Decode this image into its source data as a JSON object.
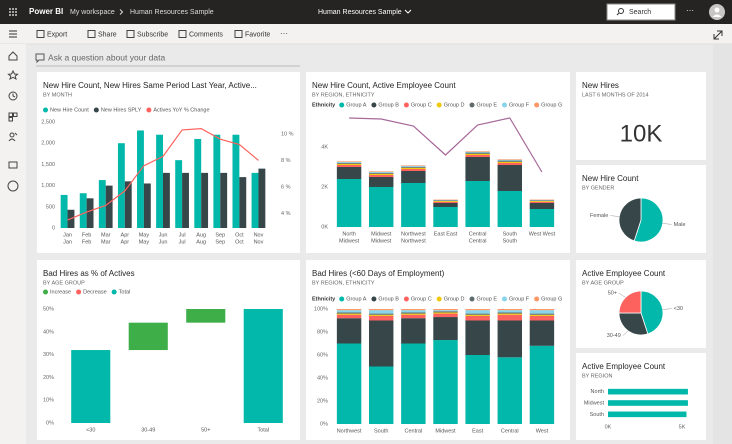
{
  "app": {
    "product": "Power BI",
    "breadcrumb": [
      "My workspace",
      "Human Resources Sample"
    ],
    "report_title": "Human Resources Sample",
    "search": "Search"
  },
  "toolbar": [
    "Export",
    "Share",
    "Subscribe",
    "Comments",
    "Favorite"
  ],
  "qa_placeholder": "Ask a question about your data",
  "chart_data": [
    {
      "type": "combo",
      "title": "New Hire Count, New Hires Same Period Last Year, Active...",
      "subtitle": "BY MONTH",
      "categories": [
        "Jan",
        "Feb",
        "Mar",
        "Apr",
        "May",
        "Jun",
        "Jul",
        "Aug",
        "Sep",
        "Oct",
        "Nov"
      ],
      "category_sublabels": [
        "Jan",
        "Feb",
        "Mar",
        "Apr",
        "May",
        "Jun",
        "Jul",
        "Aug",
        "Sep",
        "Oct",
        "Nov"
      ],
      "series": [
        {
          "name": "New Hire Count",
          "color": "#01B8AA",
          "values": [
            780,
            820,
            1130,
            2000,
            2300,
            2200,
            1600,
            2100,
            2200,
            2200,
            1300
          ]
        },
        {
          "name": "New Hires SPLY",
          "color": "#374649",
          "values": [
            430,
            700,
            1000,
            1100,
            1050,
            1300,
            1300,
            1300,
            1300,
            1200,
            1400
          ]
        },
        {
          "name": "Actives YoY % Change",
          "color": "#FD625E",
          "type": "line",
          "axis": "y2",
          "values": [
            3.5,
            4.1,
            4.6,
            5.7,
            7.6,
            8.3,
            10.3,
            10.4,
            9.6,
            9.2,
            8.0
          ]
        }
      ],
      "ylim": [
        0,
        2500
      ],
      "yticks": [
        0,
        500,
        {
          "value": 1000,
          "label": "1,000"
        },
        {
          "value": 1500,
          "label": "1,500"
        },
        {
          "value": 2000,
          "label": "2,000"
        },
        {
          "value": 2500,
          "label": "2,500"
        }
      ],
      "y2lim": [
        2.9,
        10.9
      ],
      "y2ticks": [
        {
          "value": 4,
          "label": "4 %"
        },
        {
          "value": 6,
          "label": "6 %"
        },
        {
          "value": 8,
          "label": "8 %"
        },
        {
          "value": 10,
          "label": "10 %"
        }
      ]
    },
    {
      "type": "stacked_bar",
      "title": "New Hire Count, Active Employee Count",
      "subtitle": "BY REGION, ETHNICITY",
      "legend_title": "Ethnicity",
      "categories": [
        "North",
        "Midwest",
        "Northwest",
        "East East",
        "Central",
        "South",
        "West West"
      ],
      "category_sublabels": [
        "Midwest",
        "Midwest",
        "Northwest",
        null,
        "Central",
        "South",
        null
      ],
      "series": [
        {
          "name": "Group A",
          "color": "#01B8AA",
          "values": [
            2400,
            2000,
            2200,
            1000,
            2300,
            1800,
            900
          ]
        },
        {
          "name": "Group B",
          "color": "#374649",
          "values": [
            600,
            500,
            600,
            200,
            1200,
            1300,
            300
          ]
        },
        {
          "name": "Group C",
          "color": "#FD625E",
          "values": [
            100,
            100,
            100,
            60,
            100,
            100,
            60
          ]
        },
        {
          "name": "Group D",
          "color": "#F2C80F",
          "values": [
            60,
            60,
            60,
            40,
            60,
            60,
            40
          ]
        },
        {
          "name": "Group E",
          "color": "#5F6B6D",
          "values": [
            50,
            50,
            50,
            30,
            60,
            60,
            30
          ]
        },
        {
          "name": "Group F",
          "color": "#8AD4EB",
          "values": [
            40,
            40,
            40,
            20,
            40,
            40,
            20
          ]
        },
        {
          "name": "Group G",
          "color": "#FE9666",
          "values": [
            30,
            30,
            30,
            20,
            30,
            30,
            20
          ]
        },
        {
          "name": "Active Employee Count",
          "color": "#A66999",
          "type": "line",
          "values": [
            5450,
            5400,
            5050,
            3600,
            5100,
            5450,
            2750
          ]
        }
      ],
      "ylim": [
        0,
        5600
      ],
      "yticks": [
        {
          "value": 0,
          "label": "0K"
        },
        {
          "value": 2000,
          "label": "2K"
        },
        {
          "value": 4000,
          "label": "4K"
        }
      ]
    },
    {
      "type": "card",
      "title": "New Hires",
      "subtitle": "LAST 6 MONTHS OF 2014",
      "value": 10000,
      "value_label": "10K"
    },
    {
      "type": "pie",
      "title": "New Hire Count",
      "subtitle": "BY GENDER",
      "categories": [
        "Male",
        "Female"
      ],
      "values": [
        55,
        45
      ],
      "colors": [
        "#01B8AA",
        "#374649"
      ]
    },
    {
      "type": "waterfall",
      "title": "Bad Hires as % of Actives",
      "subtitle": "BY AGE GROUP",
      "legend_items": [
        {
          "name": "Increase",
          "color": "#3EAE49"
        },
        {
          "name": "Decrease",
          "color": "#FD625E"
        },
        {
          "name": "Total",
          "color": "#01B8AA"
        }
      ],
      "categories": [
        "<30",
        "30-49",
        "50+",
        "Total"
      ],
      "values": [
        32,
        12,
        6,
        50
      ],
      "is_total": [
        false,
        false,
        false,
        true
      ],
      "bar_colors": [
        "#01B8AA",
        "#3EAE49",
        "#3EAE49",
        "#01B8AA"
      ],
      "ylim": [
        0,
        50
      ],
      "yticks": [
        {
          "value": 0,
          "label": "0%"
        },
        {
          "value": 10,
          "label": "10%"
        },
        {
          "value": 20,
          "label": "20%"
        },
        {
          "value": 30,
          "label": "30%"
        },
        {
          "value": 40,
          "label": "40%"
        },
        {
          "value": 50,
          "label": "50%"
        }
      ]
    },
    {
      "type": "stacked_bar",
      "title": "Bad Hires (<60 Days of Employment)",
      "subtitle": "BY REGION, ETHNICITY",
      "legend_title": "Ethnicity",
      "categories": [
        "Northwest",
        "South",
        "Central",
        "Midwest",
        "East",
        "Central",
        "West"
      ],
      "series": [
        {
          "name": "Group A",
          "color": "#01B8AA",
          "values": [
            70,
            50,
            70,
            73,
            60,
            58,
            68
          ]
        },
        {
          "name": "Group B",
          "color": "#374649",
          "values": [
            22,
            40,
            22,
            20,
            30,
            32,
            22
          ]
        },
        {
          "name": "Group C",
          "color": "#FD625E",
          "values": [
            3,
            4,
            3,
            3,
            4,
            5,
            4
          ]
        },
        {
          "name": "Group D",
          "color": "#F2C80F",
          "values": [
            1,
            1,
            1,
            1,
            1,
            1,
            1
          ]
        },
        {
          "name": "Group E",
          "color": "#5F6B6D",
          "values": [
            1,
            1,
            1,
            1,
            1,
            1,
            1
          ]
        },
        {
          "name": "Group F",
          "color": "#8AD4EB",
          "values": [
            2,
            3,
            2,
            1,
            3,
            2,
            3
          ]
        },
        {
          "name": "Group G",
          "color": "#FE9666",
          "values": [
            1,
            1,
            1,
            1,
            1,
            1,
            1
          ]
        }
      ],
      "ylim": [
        0,
        100
      ],
      "yticks": [
        {
          "value": 0,
          "label": "0%"
        },
        {
          "value": 20,
          "label": "20%"
        },
        {
          "value": 40,
          "label": "40%"
        },
        {
          "value": 60,
          "label": "60%"
        },
        {
          "value": 80,
          "label": "80%"
        },
        {
          "value": 100,
          "label": "100%"
        }
      ]
    },
    {
      "type": "pie",
      "title": "Active Employee Count",
      "subtitle": "BY AGE GROUP",
      "categories": [
        "<30",
        "30-49",
        "50+"
      ],
      "values": [
        45,
        30,
        25
      ],
      "colors": [
        "#01B8AA",
        "#374649",
        "#FD625E"
      ]
    },
    {
      "type": "hbar",
      "title": "Active Employee Count",
      "subtitle": "BY REGION",
      "categories": [
        "North",
        "Midwest",
        "South"
      ],
      "values": [
        5400,
        5400,
        5300
      ],
      "color": "#01B8AA",
      "xlim": [
        0,
        5600
      ],
      "xticks": [
        {
          "value": 0,
          "label": "0K"
        },
        {
          "value": 5000,
          "label": "5K"
        }
      ]
    }
  ]
}
